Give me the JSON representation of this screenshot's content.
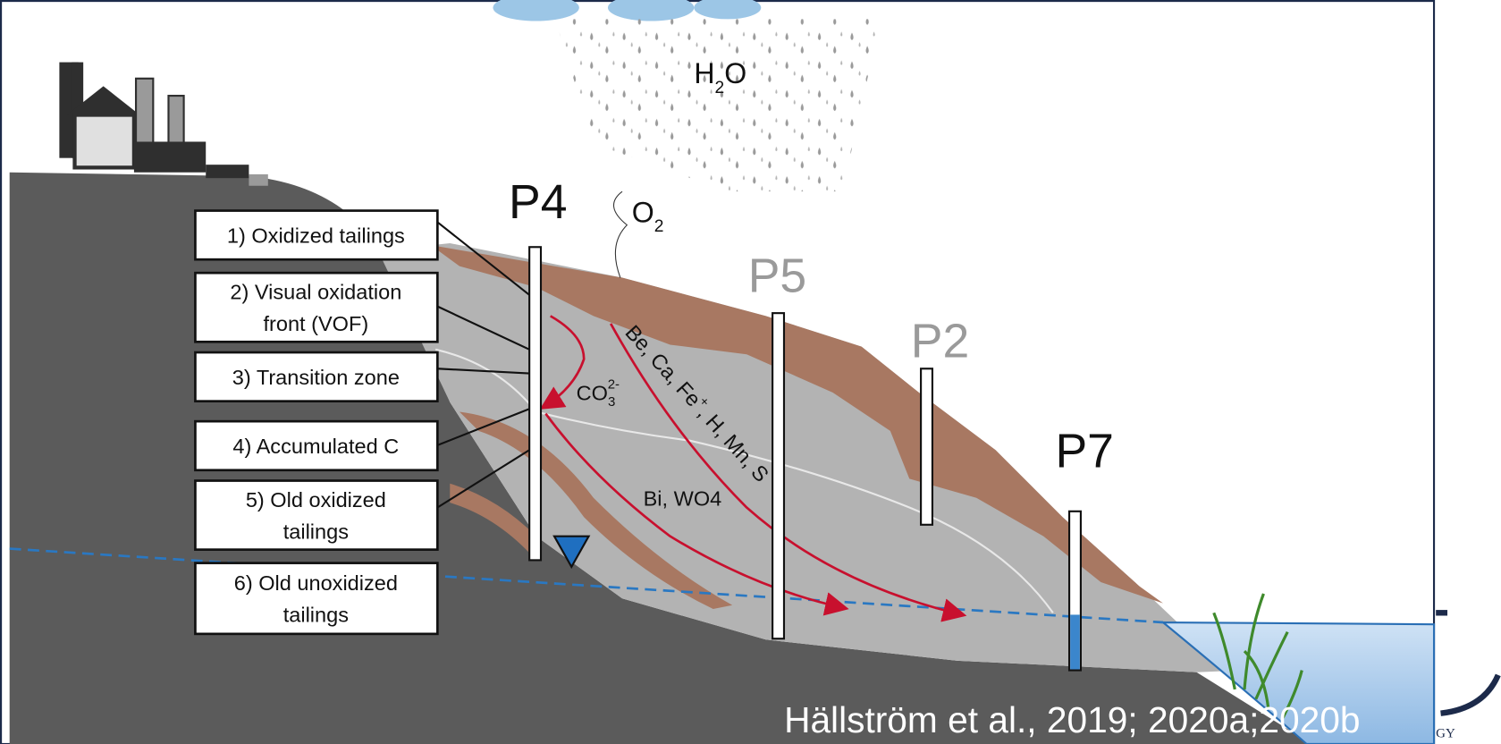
{
  "layers": [
    {
      "lines": [
        "1) Oxidized tailings"
      ]
    },
    {
      "lines": [
        "2) Visual oxidation",
        "front (VOF)"
      ]
    },
    {
      "lines": [
        "3) Transition zone"
      ]
    },
    {
      "lines": [
        "4) Accumulated C"
      ]
    },
    {
      "lines": [
        "5) Old oxidized",
        "tailings"
      ]
    },
    {
      "lines": [
        "6) Old unoxidized",
        "tailings"
      ]
    }
  ],
  "wells": [
    {
      "label": "P4"
    },
    {
      "label": "P5"
    },
    {
      "label": "P2"
    },
    {
      "label": "P7"
    }
  ],
  "chemistry": {
    "water": [
      "H",
      "2",
      "O"
    ],
    "oxygen": [
      "O",
      "2"
    ],
    "carbonate": [
      "CO",
      "3",
      "2-"
    ],
    "mobile": [
      "Be, Ca, Fe",
      "+",
      ", H, Mn, S"
    ],
    "downstream": "Bi, WO4"
  },
  "citation": "Hällström et al., 2019; 2020a;2020b",
  "logo_text": "GY"
}
